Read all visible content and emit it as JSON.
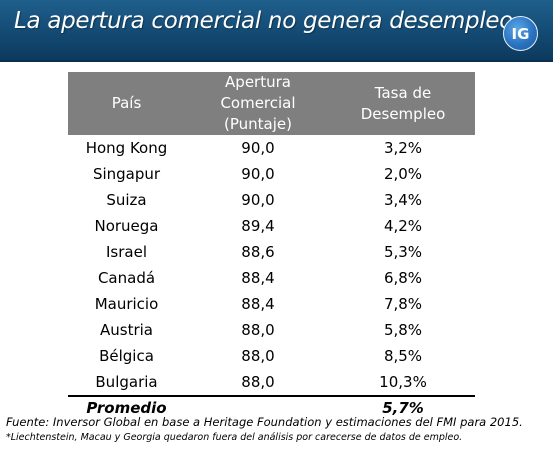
{
  "header": {
    "title": "La apertura comercial no genera desempleo",
    "logo_text": "IG"
  },
  "colors": {
    "banner": "#134a73",
    "table_header": "#7f7f7f",
    "logo": "#2a73c0"
  },
  "chart_data": {
    "type": "table",
    "columns": [
      "País",
      "Apertura Comercial (Puntaje)",
      "Tasa de Desempleo"
    ],
    "rows": [
      [
        "Hong Kong",
        "90,0",
        "3,2%"
      ],
      [
        "Singapur",
        "90,0",
        "2,0%"
      ],
      [
        "Suiza",
        "90,0",
        "3,4%"
      ],
      [
        "Noruega",
        "89,4",
        "4,2%"
      ],
      [
        "Israel",
        "88,6",
        "5,3%"
      ],
      [
        "Canadá",
        "88,4",
        "6,8%"
      ],
      [
        "Mauricio",
        "88,4",
        "7,8%"
      ],
      [
        "Austria",
        "88,0",
        "5,8%"
      ],
      [
        "Bélgica",
        "88,0",
        "8,5%"
      ],
      [
        "Bulgaria",
        "88,0",
        "10,3%"
      ]
    ],
    "summary": {
      "label": "Promedio",
      "apertura": "",
      "desempleo": "5,7%"
    }
  },
  "footer": {
    "source": "Fuente: Inversor Global en base a Heritage Foundation y estimaciones del FMI para 2015.",
    "note": "*Liechtenstein, Macau y Georgia quedaron fuera del análisis por carecerse de datos de empleo."
  }
}
